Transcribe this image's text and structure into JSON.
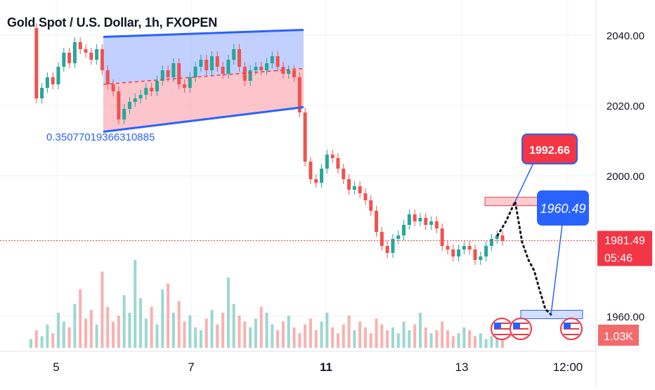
{
  "title": "Gold Spot / U.S. Dollar, 1h, FXOPEN",
  "chart_data": {
    "type": "candlestick",
    "title": "Gold Spot / U.S. Dollar, 1h, FXOPEN",
    "ylim": [
      1951,
      2050
    ],
    "y_ticks": [
      "2040.00",
      "2020.00",
      "2000.00",
      "1960.00"
    ],
    "x_ticks": [
      "5",
      "7",
      "11",
      "13",
      "12:00"
    ],
    "current_price": "1981.49",
    "countdown": "05:46",
    "volume_label": "1.03K",
    "channel_value_label": "0.35077019366310885",
    "target_labels": [
      "1992.66",
      "1960.49"
    ],
    "key_levels": {
      "upper_zone": 1992.66,
      "lower_zone": 1960.49,
      "last_price": 1981.49
    },
    "channel": {
      "upper": [
        [
          0,
          2039.5
        ],
        [
          1,
          2041.5
        ]
      ],
      "lower": [
        [
          0,
          2012.5
        ],
        [
          1,
          2019.5
        ]
      ],
      "mid": [
        [
          0,
          2026
        ],
        [
          1,
          2030.5
        ]
      ]
    },
    "projection_path": [
      1992.66,
      1981,
      1976,
      1973,
      1968,
      1962,
      1960.49
    ],
    "price_path": [
      2042,
      2022,
      2025,
      2028,
      2026,
      2031,
      2035,
      2032,
      2038,
      2036,
      2035,
      2033,
      2036,
      2030,
      2026,
      2024,
      2016,
      2019,
      2021,
      2022,
      2023,
      2025,
      2024,
      2027,
      2030,
      2028,
      2032,
      2026,
      2025,
      2028,
      2031,
      2033,
      2030,
      2034,
      2031,
      2029,
      2033,
      2036,
      2031,
      2027,
      2030,
      2031,
      2030,
      2032,
      2034,
      2031,
      2029,
      2030,
      2028,
      2018,
      2004,
      1999,
      1998,
      2002,
      2006,
      2005,
      2002,
      1999,
      1996,
      1997,
      1995,
      1993,
      1990,
      1984,
      1980,
      1978,
      1982,
      1983,
      1986,
      1989,
      1987,
      1988,
      1986,
      1987,
      1985,
      1980,
      1979,
      1977,
      1979,
      1980,
      1979,
      1976,
      1977,
      1980,
      1982,
      1983,
      1981.49
    ],
    "volume": [
      3,
      6,
      4,
      8,
      5,
      12,
      9,
      7,
      15,
      20,
      10,
      13,
      8,
      26,
      14,
      9,
      11,
      18,
      12,
      30,
      17,
      10,
      14,
      8,
      20,
      22,
      12,
      16,
      9,
      11,
      7,
      6,
      10,
      13,
      8,
      12,
      24,
      15,
      11,
      9,
      7,
      10,
      14,
      12,
      8,
      6,
      9,
      11,
      7,
      5,
      8,
      10,
      6,
      9,
      12,
      7,
      5,
      8,
      11,
      6,
      9,
      7,
      5,
      10,
      8,
      6,
      7,
      5,
      9,
      6,
      8,
      12,
      7,
      5,
      6,
      9,
      6,
      4,
      5,
      7,
      6,
      4,
      5,
      3,
      4,
      5,
      4
    ]
  }
}
